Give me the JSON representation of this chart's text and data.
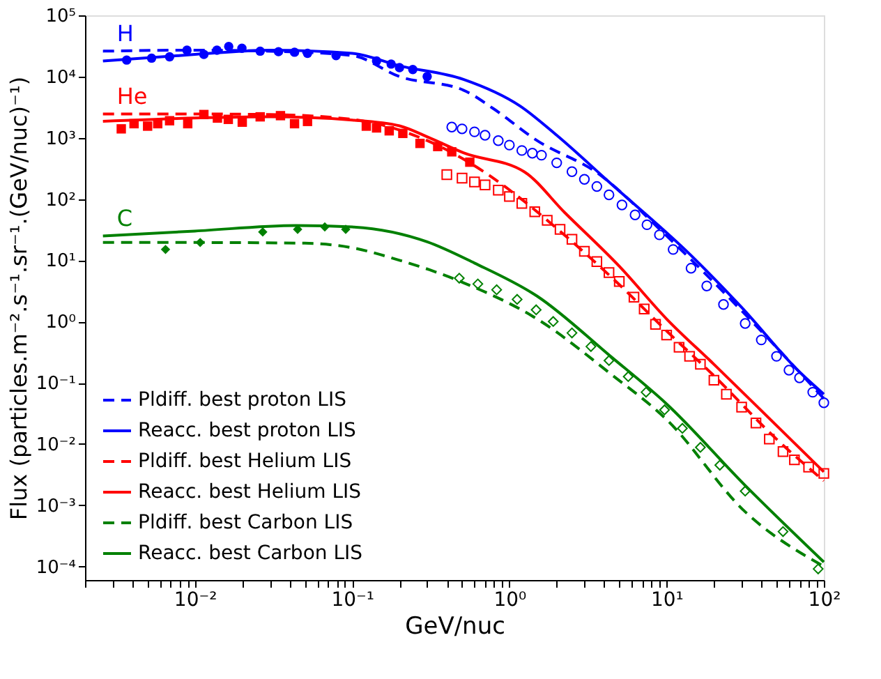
{
  "chart_data": {
    "type": "line",
    "xlabel": "GeV/nuc",
    "ylabel": "Flux (particles.m⁻².s⁻¹.sr⁻¹.(GeV/nuc)⁻¹)",
    "log": "xy",
    "grid": false,
    "legend": "bottom left",
    "xlim": [
      0.002,
      100
    ],
    "ylim": [
      6e-05,
      100000
    ],
    "xticks": [
      {
        "value": 0.002,
        "label": null
      },
      {
        "value": 0.003,
        "label": null
      },
      {
        "value": 0.004,
        "label": null
      },
      {
        "value": 0.005,
        "label": null
      },
      {
        "value": 0.006,
        "label": null
      },
      {
        "value": 0.007,
        "label": null
      },
      {
        "value": 0.008,
        "label": null
      },
      {
        "value": 0.009,
        "label": null
      },
      {
        "value": 0.01,
        "label": "10⁻²"
      },
      {
        "value": 0.02,
        "label": null
      },
      {
        "value": 0.03,
        "label": null
      },
      {
        "value": 0.04,
        "label": null
      },
      {
        "value": 0.05,
        "label": null
      },
      {
        "value": 0.06,
        "label": null
      },
      {
        "value": 0.07,
        "label": null
      },
      {
        "value": 0.08,
        "label": null
      },
      {
        "value": 0.09,
        "label": null
      },
      {
        "value": 0.1,
        "label": "10⁻¹"
      },
      {
        "value": 0.2,
        "label": null
      },
      {
        "value": 0.3,
        "label": null
      },
      {
        "value": 0.4,
        "label": null
      },
      {
        "value": 0.5,
        "label": null
      },
      {
        "value": 0.6,
        "label": null
      },
      {
        "value": 0.7,
        "label": null
      },
      {
        "value": 0.8,
        "label": null
      },
      {
        "value": 0.9,
        "label": null
      },
      {
        "value": 1,
        "label": "10⁰"
      },
      {
        "value": 2,
        "label": null
      },
      {
        "value": 3,
        "label": null
      },
      {
        "value": 4,
        "label": null
      },
      {
        "value": 5,
        "label": null
      },
      {
        "value": 6,
        "label": null
      },
      {
        "value": 7,
        "label": null
      },
      {
        "value": 8,
        "label": null
      },
      {
        "value": 9,
        "label": null
      },
      {
        "value": 10,
        "label": "10¹"
      },
      {
        "value": 20,
        "label": null
      },
      {
        "value": 30,
        "label": null
      },
      {
        "value": 40,
        "label": null
      },
      {
        "value": 50,
        "label": null
      },
      {
        "value": 60,
        "label": null
      },
      {
        "value": 70,
        "label": null
      },
      {
        "value": 80,
        "label": null
      },
      {
        "value": 90,
        "label": null
      },
      {
        "value": 100,
        "label": "10²"
      }
    ],
    "yticks": [
      {
        "value": 0.0001,
        "label": "10⁻⁴"
      },
      {
        "value": 0.001,
        "label": "10⁻³"
      },
      {
        "value": 0.01,
        "label": "10⁻²"
      },
      {
        "value": 0.1,
        "label": "10⁻¹"
      },
      {
        "value": 1,
        "label": "10⁰"
      },
      {
        "value": 10,
        "label": "10¹"
      },
      {
        "value": 100,
        "label": "10²"
      },
      {
        "value": 1000,
        "label": "10³"
      },
      {
        "value": 10000,
        "label": "10⁴"
      },
      {
        "value": 100000,
        "label": "10⁵"
      }
    ],
    "annotations": [
      "H",
      "He",
      "C"
    ],
    "series": [
      {
        "name": "Pldiff. best proton LIS",
        "line_style": "dashed",
        "color": "#0000ff",
        "x": [
          0.0026,
          0.01,
          0.03,
          0.1,
          0.2,
          0.51,
          0.79,
          1.5,
          3.6,
          10,
          30,
          100
        ],
        "values": [
          26000,
          27000,
          26000,
          22000,
          10000,
          6000,
          3000,
          900,
          270,
          25,
          1.5,
          0.055
        ]
      },
      {
        "name": "Reacc. best proton LIS",
        "line_style": "solid",
        "color": "#0000ff",
        "x": [
          0.0026,
          0.01,
          0.03,
          0.1,
          0.2,
          0.51,
          1.17,
          2,
          4.3,
          14.3,
          30,
          70,
          100
        ],
        "values": [
          18000,
          23000,
          27000,
          24000,
          15000,
          9000,
          3300,
          1100,
          190,
          12,
          1.7,
          0.15,
          0.065
        ]
      },
      {
        "name": "Pldiff. best Helium LIS",
        "line_style": "dashed",
        "color": "#ff0000",
        "x": [
          0.0026,
          0.01,
          0.03,
          0.1,
          0.3,
          0.6,
          1.24,
          1.74,
          5,
          10,
          20,
          50,
          100
        ],
        "values": [
          2450,
          2450,
          2400,
          2000,
          900,
          350,
          92,
          45,
          4,
          0.7,
          0.13,
          0.012,
          0.0025
        ]
      },
      {
        "name": "Reacc. best Helium LIS",
        "line_style": "solid",
        "color": "#ff0000",
        "x": [
          0.0026,
          0.01,
          0.03,
          0.1,
          0.2,
          0.31,
          0.51,
          1.24,
          2.25,
          5,
          10,
          20,
          50,
          100
        ],
        "values": [
          1860,
          2100,
          2200,
          1950,
          1570,
          1000,
          570,
          280,
          60,
          8,
          1.1,
          0.2,
          0.02,
          0.0035
        ]
      },
      {
        "name": "Pldiff. best Carbon LIS",
        "line_style": "dashed",
        "color": "#008000",
        "x": [
          0.0026,
          0.01,
          0.05,
          0.1,
          0.2,
          0.31,
          0.51,
          1.5,
          4.4,
          10,
          31.6,
          100
        ],
        "values": [
          19.5,
          19.5,
          19,
          16,
          10,
          7,
          4.3,
          1.1,
          0.14,
          0.025,
          0.00078,
          0.0001
        ]
      },
      {
        "name": "Reacc. best Carbon LIS",
        "line_style": "solid",
        "color": "#008000",
        "x": [
          0.0026,
          0.01,
          0.044,
          0.1,
          0.3,
          0.6,
          1.5,
          4.4,
          10,
          31.6,
          100
        ],
        "values": [
          25,
          30,
          37,
          35,
          20,
          9,
          2.6,
          0.27,
          0.045,
          0.0021,
          0.000118
        ]
      },
      {
        "type": "scatter",
        "marker": "circle",
        "color": "#0000ff",
        "x": [
          0.00368,
          0.0053,
          0.0069,
          0.0089,
          0.0114,
          0.0138,
          0.0164,
          0.0199,
          0.026,
          0.034,
          0.043,
          0.052,
          0.079,
          0.143,
          0.177,
          0.2,
          0.243,
          0.3
        ],
        "values": [
          18600,
          20000,
          21000,
          27000,
          23000,
          27000,
          31000,
          29000,
          26000,
          25500,
          25000,
          24000,
          22000,
          18000,
          16000,
          14000,
          13000,
          10000
        ]
      },
      {
        "type": "scatter",
        "marker": "circle",
        "color": "#0000ff",
        "x": [
          0.43,
          0.5,
          0.6,
          0.7,
          0.85,
          1,
          1.2,
          1.4,
          1.6,
          2,
          2.5,
          3,
          3.6,
          4.3,
          5.2,
          6.3,
          7.5,
          9,
          11,
          14.3,
          18,
          23,
          31.6,
          40,
          50,
          60,
          70,
          85,
          100
        ],
        "values": [
          1500,
          1400,
          1250,
          1100,
          900,
          760,
          620,
          560,
          520,
          390,
          280,
          210,
          160,
          117,
          80,
          55,
          38,
          26,
          15,
          7.4,
          3.8,
          1.9,
          0.93,
          0.5,
          0.27,
          0.16,
          0.12,
          0.07,
          0.047
        ]
      },
      {
        "type": "scatter",
        "marker": "square",
        "color": "#ff0000",
        "x": [
          0.0034,
          0.0041,
          0.005,
          0.0058,
          0.0069,
          0.009,
          0.0114,
          0.0139,
          0.0163,
          0.02,
          0.026,
          0.035,
          0.043,
          0.052,
          0.123,
          0.143,
          0.172,
          0.21,
          0.27,
          0.35,
          0.43,
          0.56
        ],
        "values": [
          1400,
          1700,
          1550,
          1700,
          1900,
          1700,
          2400,
          2100,
          2000,
          1800,
          2200,
          2300,
          1700,
          1850,
          1550,
          1450,
          1300,
          1180,
          810,
          720,
          590,
          400
        ]
      },
      {
        "type": "scatter",
        "marker": "square",
        "color": "#ff0000",
        "x": [
          0.4,
          0.5,
          0.6,
          0.7,
          0.85,
          1,
          1.2,
          1.45,
          1.74,
          2.1,
          2.5,
          3,
          3.6,
          4.3,
          5,
          6.2,
          7.2,
          8.5,
          10,
          12,
          14,
          16.4,
          20,
          24,
          30,
          37,
          45,
          55,
          65,
          80,
          100
        ],
        "values": [
          250,
          220,
          190,
          170,
          140,
          110,
          85,
          62,
          45,
          32,
          22,
          14,
          9.5,
          6.3,
          4.5,
          2.5,
          1.6,
          0.9,
          0.6,
          0.38,
          0.27,
          0.2,
          0.11,
          0.065,
          0.04,
          0.022,
          0.012,
          0.0075,
          0.0055,
          0.0042,
          0.0033
        ]
      },
      {
        "type": "scatter",
        "marker": "diamond",
        "color": "#008000",
        "x": [
          0.0065,
          0.0108,
          0.027,
          0.045,
          0.067,
          0.091
        ],
        "values": [
          15,
          19.5,
          29,
          32,
          35,
          32
        ]
      },
      {
        "type": "scatter",
        "marker": "diamond",
        "color": "#008000",
        "x": [
          0.48,
          0.63,
          0.83,
          1.12,
          1.48,
          1.9,
          2.5,
          3.3,
          4.3,
          5.7,
          7.4,
          9.7,
          12.6,
          16.4,
          21.8,
          31.6,
          55,
          92
        ],
        "values": [
          5.1,
          4.1,
          3.3,
          2.3,
          1.55,
          1.0,
          0.65,
          0.39,
          0.23,
          0.126,
          0.07,
          0.036,
          0.018,
          0.0088,
          0.0045,
          0.0017,
          0.00037,
          9.1e-05
        ]
      }
    ]
  }
}
